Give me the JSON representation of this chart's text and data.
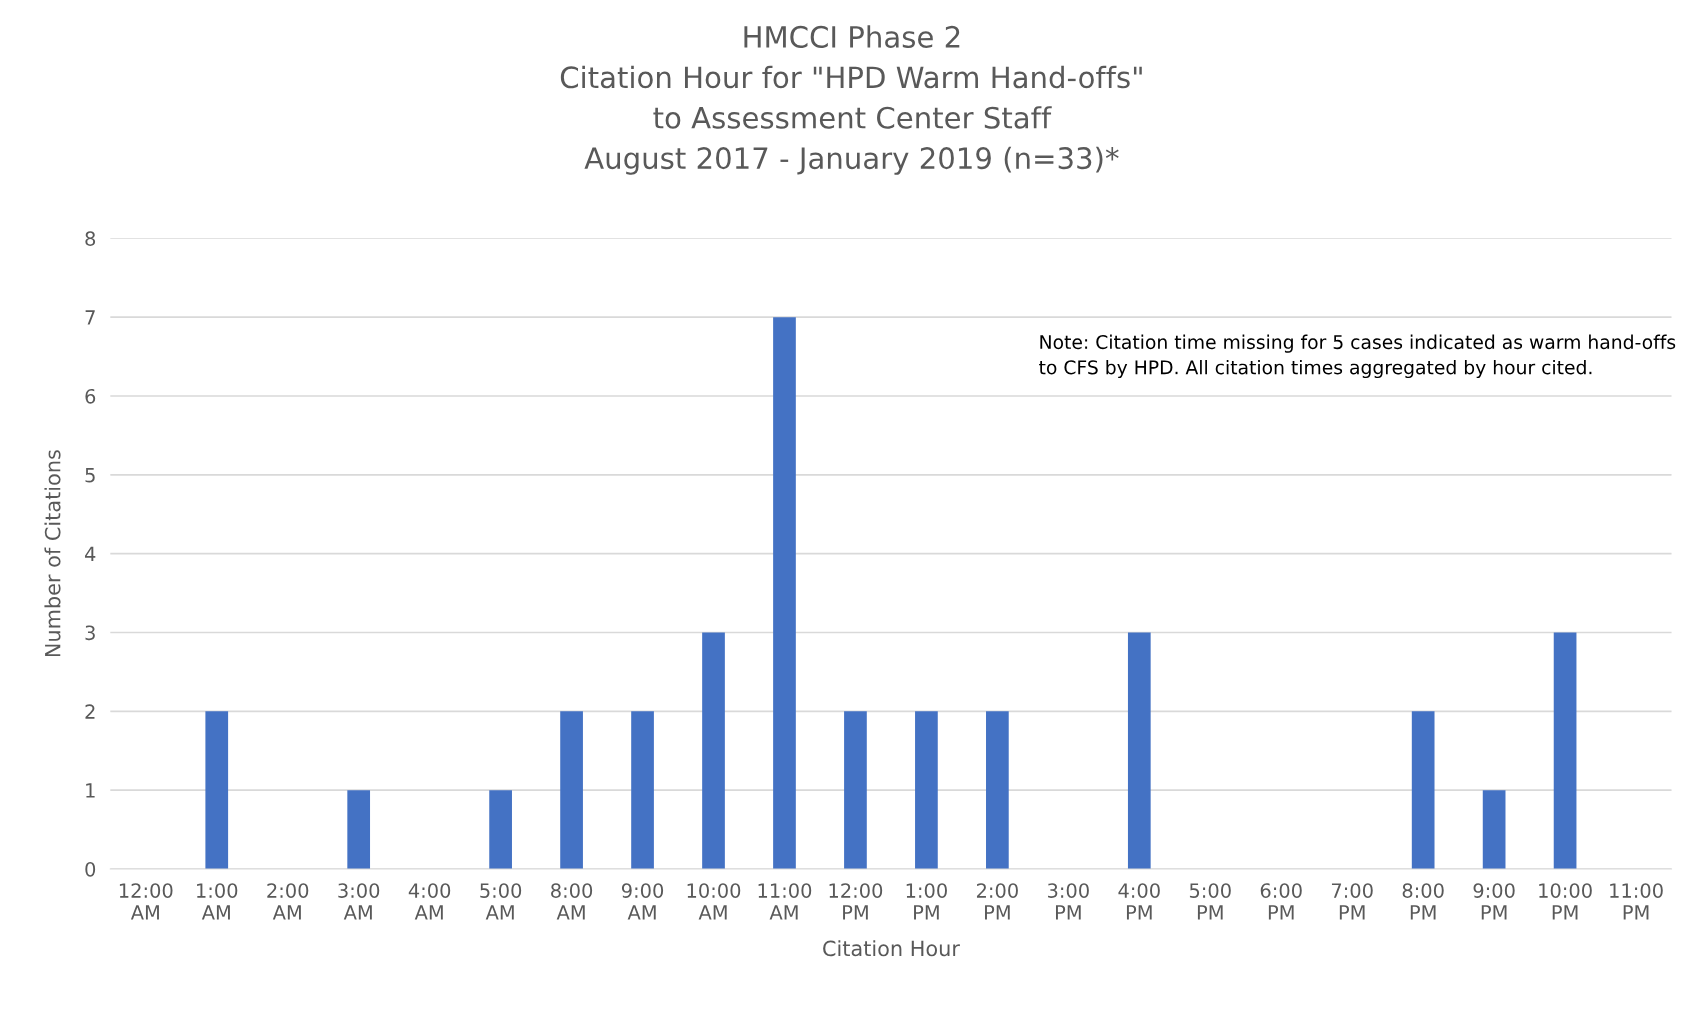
{
  "chart_data": {
    "type": "bar",
    "title": "HMCCI Phase 2\nCitation Hour for \"HPD Warm Hand-offs\"\nto Assessment Center Staff\nAugust 2017 - January 2019 (n=33)*",
    "xlabel": "Citation Hour",
    "ylabel": "Number of Citations",
    "categories": [
      "12:00\nAM",
      "1:00\nAM",
      "2:00\nAM",
      "3:00\nAM",
      "4:00\nAM",
      "5:00\nAM",
      "8:00\nAM",
      "9:00\nAM",
      "10:00\nAM",
      "11:00\nAM",
      "12:00\nPM",
      "1:00\nPM",
      "2:00\nPM",
      "3:00\nPM",
      "4:00\nPM",
      "5:00\nPM",
      "6:00\nPM",
      "7:00\nPM",
      "8:00\nPM",
      "9:00\nPM",
      "10:00\nPM",
      "11:00\nPM"
    ],
    "values": [
      0,
      2,
      0,
      1,
      0,
      1,
      2,
      2,
      3,
      7,
      2,
      2,
      2,
      0,
      3,
      0,
      0,
      0,
      2,
      1,
      3,
      0
    ],
    "color": "#4472c4",
    "ylim": [
      0,
      8
    ],
    "yticks": [
      0,
      1,
      2,
      3,
      4,
      5,
      6,
      7,
      8
    ],
    "grid": "y",
    "annotations": [
      "Note: Citation time missing for 5 cases indicated as warm hand-offs to CFS by HPD. All citation times aggregated by hour cited."
    ]
  }
}
